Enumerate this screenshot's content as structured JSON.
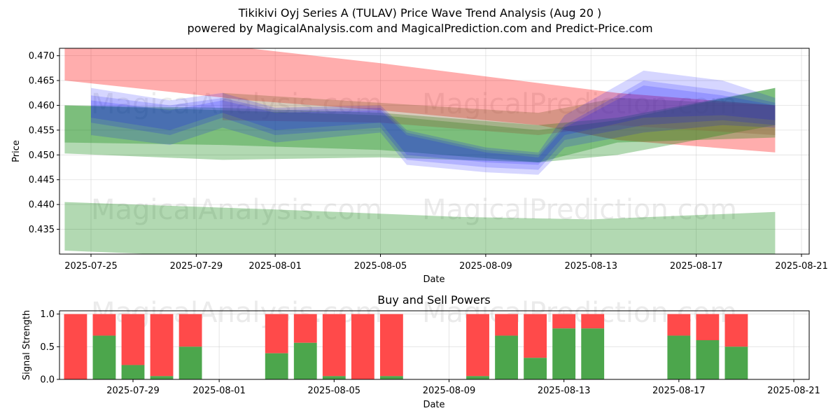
{
  "title_line1": "Tikikivi Oyj Series A (TULAV) Price Wave Trend Analysis (Aug 20 )",
  "title_line2": "powered by MagicalAnalysis.com and MagicalPrediction.com and Predict-Price.com",
  "watermarks": [
    "MagicalAnalysis.com",
    "MagicalPrediction.com"
  ],
  "colors": {
    "red": "#ff0000",
    "green": "#008000",
    "blue": "#0000ff",
    "brown": "#8b6a3e",
    "buy": "#4ca64c",
    "sell": "#ff4a4a"
  },
  "chart_data": [
    {
      "type": "area",
      "title": "",
      "xlabel": "Date",
      "ylabel": "Price",
      "xlim": [
        "2025-07-24",
        "2025-08-21"
      ],
      "ylim": [
        0.43,
        0.4715
      ],
      "grid": true,
      "x_ticks": [
        "2025-07-25",
        "2025-07-29",
        "2025-08-01",
        "2025-08-05",
        "2025-08-09",
        "2025-08-13",
        "2025-08-17",
        "2025-08-21"
      ],
      "y_ticks": [
        0.435,
        0.44,
        0.445,
        0.45,
        0.455,
        0.46,
        0.465,
        0.47
      ],
      "bands": [
        {
          "color": "red",
          "x": [
            "2025-07-24",
            "2025-07-31",
            "2025-08-05",
            "2025-08-11",
            "2025-08-14",
            "2025-08-20"
          ],
          "upper": [
            0.4735,
            0.4715,
            0.4685,
            0.4645,
            0.4625,
            0.46
          ],
          "lower": [
            0.465,
            0.461,
            0.459,
            0.456,
            0.453,
            0.4505
          ]
        },
        {
          "color": "green",
          "x": [
            "2025-07-24",
            "2025-07-30",
            "2025-08-05",
            "2025-08-11",
            "2025-08-14",
            "2025-08-20"
          ],
          "upper": [
            0.46,
            0.4595,
            0.4585,
            0.456,
            0.4575,
            0.4635
          ]
        },
        {
          "color": "green",
          "x": [
            "2025-07-24",
            "2025-07-30",
            "2025-08-05",
            "2025-08-11",
            "2025-08-14",
            "2025-08-20"
          ],
          "upper": [
            0.46,
            0.459,
            0.458,
            0.455,
            0.457,
            0.4635
          ],
          "lower": [
            0.4503,
            0.449,
            0.4495,
            0.4485,
            0.4525,
            0.4535
          ]
        },
        {
          "color": "green",
          "x": [
            "2025-07-24",
            "2025-08-01",
            "2025-08-08",
            "2025-08-13",
            "2025-08-20"
          ],
          "upper": [
            0.4405,
            0.439,
            0.4375,
            0.437,
            0.4385
          ],
          "lower": [
            0.4307,
            0.429,
            0.428,
            0.428,
            0.43
          ]
        },
        {
          "color": "brown",
          "x": [
            "2025-07-30",
            "2025-08-05",
            "2025-08-11",
            "2025-08-14",
            "2025-08-20"
          ],
          "upper": [
            0.4625,
            0.4605,
            0.4585,
            0.4615,
            0.46
          ],
          "lower": [
            0.457,
            0.4565,
            0.454,
            0.456,
            0.454
          ]
        },
        {
          "color": "blue",
          "x": [
            "2025-07-25",
            "2025-07-28",
            "2025-07-30",
            "2025-08-01",
            "2025-08-05",
            "2025-08-06",
            "2025-08-09",
            "2025-08-11",
            "2025-08-12",
            "2025-08-15",
            "2025-08-18",
            "2025-08-20"
          ],
          "upper": [
            0.462,
            0.46,
            0.4615,
            0.459,
            0.4595,
            0.4545,
            0.451,
            0.45,
            0.456,
            0.465,
            0.463,
            0.4605
          ],
          "lower": [
            0.4565,
            0.454,
            0.4575,
            0.454,
            0.4555,
            0.449,
            0.4475,
            0.447,
            0.453,
            0.456,
            0.457,
            0.456
          ]
        },
        {
          "color": "blue",
          "x": [
            "2025-07-25",
            "2025-07-28",
            "2025-07-30",
            "2025-08-01",
            "2025-08-05",
            "2025-08-06",
            "2025-08-09",
            "2025-08-11",
            "2025-08-12",
            "2025-08-15",
            "2025-08-18",
            "2025-08-20"
          ],
          "upper": [
            0.4635,
            0.461,
            0.4625,
            0.4595,
            0.46,
            0.455,
            0.4515,
            0.4505,
            0.458,
            0.467,
            0.465,
            0.4615
          ],
          "lower": [
            0.454,
            0.452,
            0.4555,
            0.4525,
            0.4545,
            0.448,
            0.4465,
            0.446,
            0.4515,
            0.4545,
            0.456,
            0.4555
          ]
        },
        {
          "color": "blue",
          "x": [
            "2025-07-25",
            "2025-07-28",
            "2025-07-30",
            "2025-08-01",
            "2025-08-05",
            "2025-08-06",
            "2025-08-09",
            "2025-08-11",
            "2025-08-12",
            "2025-08-15",
            "2025-08-18",
            "2025-08-20"
          ],
          "upper": [
            0.461,
            0.459,
            0.461,
            0.4585,
            0.459,
            0.454,
            0.4505,
            0.4495,
            0.4555,
            0.464,
            0.462,
            0.46
          ],
          "lower": [
            0.4575,
            0.455,
            0.4585,
            0.455,
            0.4565,
            0.45,
            0.4485,
            0.448,
            0.454,
            0.4575,
            0.458,
            0.457
          ]
        }
      ]
    },
    {
      "type": "bar",
      "title": "Buy and Sell Powers",
      "xlabel": "Date",
      "ylabel": "Signal Strength",
      "xlim": [
        "2025-07-25",
        "2025-08-21"
      ],
      "ylim": [
        0,
        1.05
      ],
      "x_ticks": [
        "2025-07-29",
        "2025-08-01",
        "2025-08-05",
        "2025-08-09",
        "2025-08-13",
        "2025-08-17",
        "2025-08-21"
      ],
      "y_ticks": [
        "0.0",
        "0.5",
        "1.0"
      ],
      "dates": [
        "2025-07-27",
        "2025-07-28",
        "2025-07-29",
        "2025-07-30",
        "2025-07-31",
        "2025-08-03",
        "2025-08-04",
        "2025-08-05",
        "2025-08-06",
        "2025-08-07",
        "2025-08-10",
        "2025-08-11",
        "2025-08-12",
        "2025-08-13",
        "2025-08-14",
        "2025-08-17",
        "2025-08-18",
        "2025-08-19"
      ],
      "buy": [
        0.0,
        0.67,
        0.22,
        0.05,
        0.5,
        0.4,
        0.56,
        0.05,
        0.0,
        0.05,
        0.05,
        0.67,
        0.33,
        0.78,
        0.78,
        0.67,
        0.6,
        0.5
      ]
    }
  ]
}
